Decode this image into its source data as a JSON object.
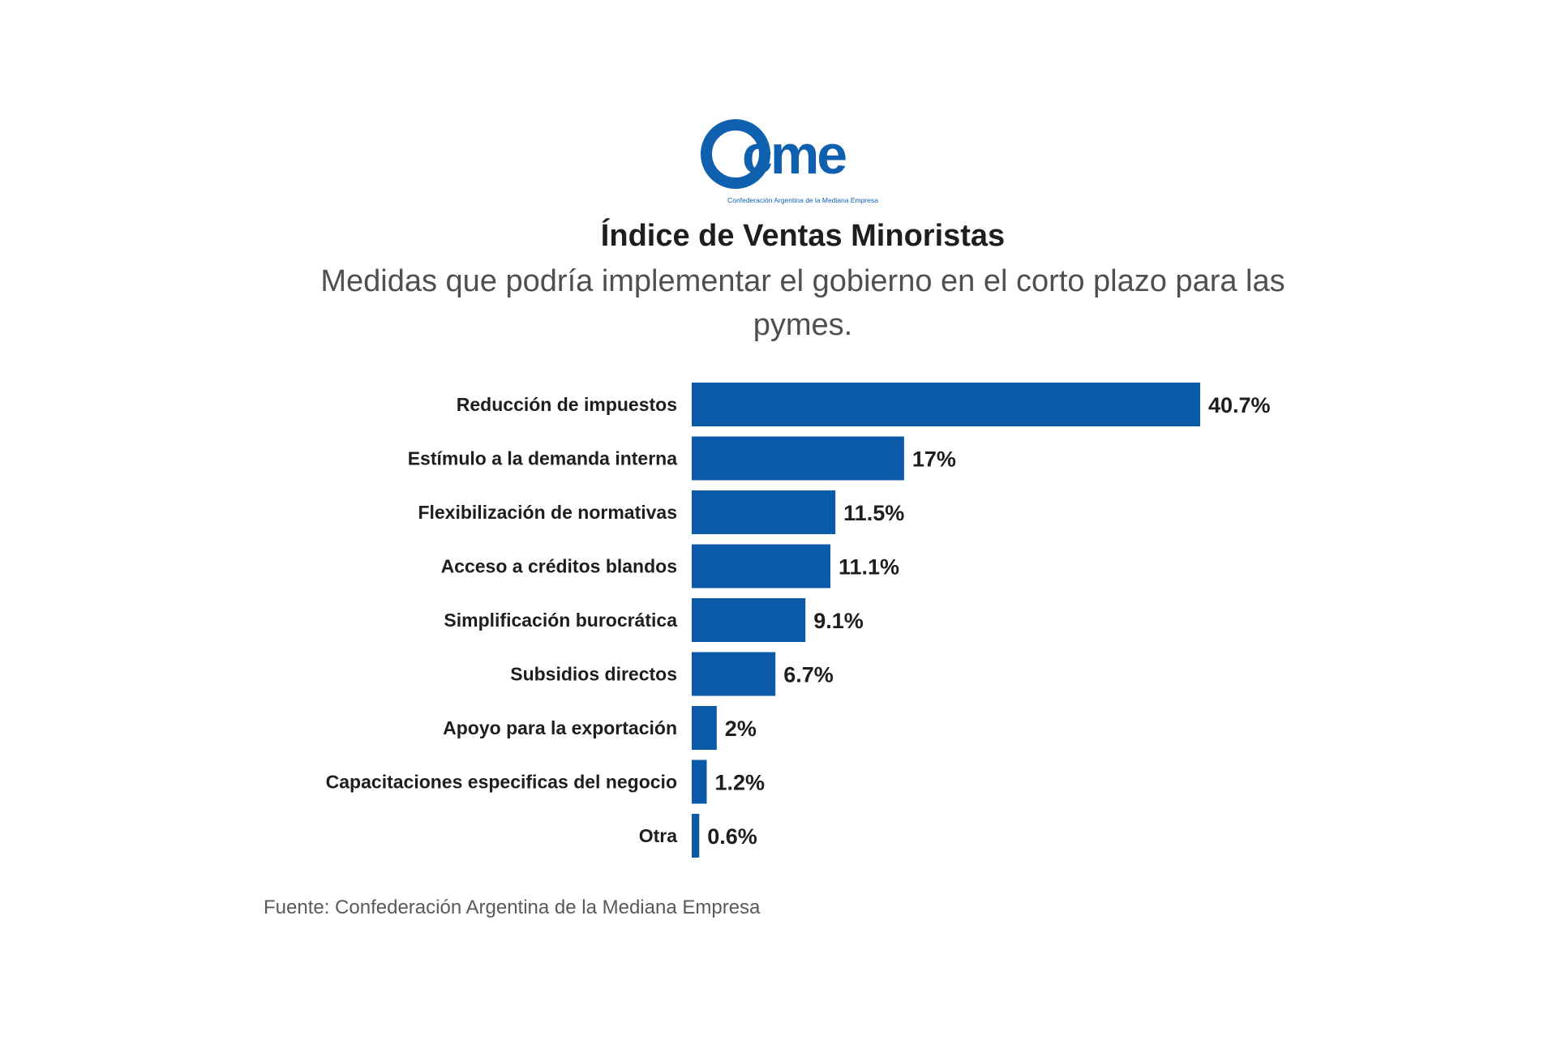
{
  "logo": {
    "brand_text": "cme",
    "tagline": "Confederación Argentina de la Mediana Empresa"
  },
  "colors": {
    "bar": "#0a5aa8",
    "logo": "#1060b0",
    "label_text": "#1e1e1e"
  },
  "chart_data": {
    "type": "bar",
    "orientation": "horizontal",
    "title": "Índice de Ventas Minoristas",
    "subtitle": "Medidas que podría implementar el gobierno en el corto plazo para las pymes.",
    "categories": [
      "Reducción de impuestos",
      "Estímulo a la demanda interna",
      "Flexibilización de normativas",
      "Acceso a créditos blandos",
      "Simplificación burocrática",
      "Subsidios directos",
      "Apoyo para la exportación",
      "Capacitaciones especificas del negocio",
      "Otra"
    ],
    "values": [
      40.7,
      17,
      11.5,
      11.1,
      9.1,
      6.7,
      2,
      1.2,
      0.6
    ],
    "value_labels": [
      "40.7%",
      "17%",
      "11.5%",
      "11.1%",
      "9.1%",
      "6.7%",
      "2%",
      "1.2%",
      "0.6%"
    ],
    "unit": "%",
    "xlim": [
      0,
      40.7
    ],
    "grid": false,
    "legend": "none",
    "source": "Fuente: Confederación Argentina de la Mediana Empresa"
  }
}
